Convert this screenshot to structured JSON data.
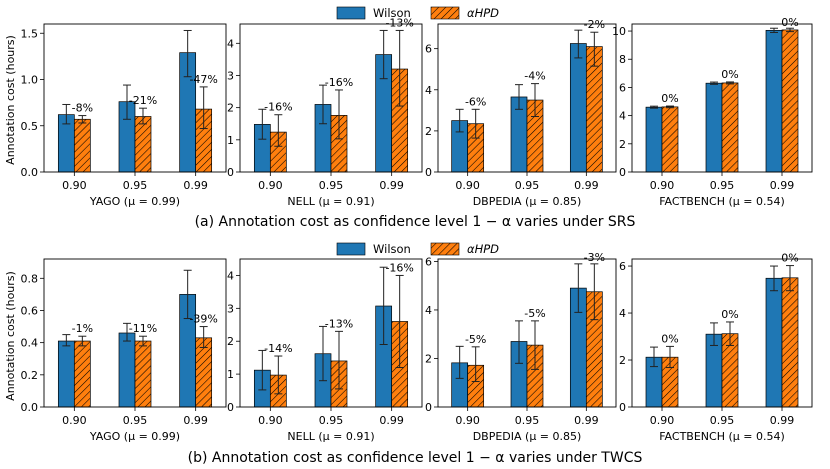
{
  "legend": {
    "labels": [
      "Wilson",
      "αHPD"
    ],
    "colors": [
      "#1f77b4",
      "#ff7f0e"
    ],
    "placement": "top-center"
  },
  "ylabel": "Annotation cost (hours)",
  "rows": [
    {
      "caption": "(a) Annotation cost as confidence level 1 − α varies under SRS"
    },
    {
      "caption": "(b) Annotation cost as confidence level 1 − α varies under TWCS"
    }
  ],
  "chart_data": [
    {
      "type": "bar",
      "row": 0,
      "col": 0,
      "xlabel": "YAGO (μ = 0.99)",
      "categories": [
        "0.90",
        "0.95",
        "0.99"
      ],
      "ylim": [
        0,
        1.6
      ],
      "yticks": [
        0,
        0.5,
        1.0,
        1.5
      ],
      "yticklabels": [
        "0.0",
        "0.5",
        "1.0",
        "1.5"
      ],
      "series": [
        {
          "name": "Wilson",
          "values": [
            0.62,
            0.76,
            1.29
          ],
          "err_low": [
            0.52,
            0.57,
            1.03
          ],
          "err_high": [
            0.73,
            0.94,
            1.53
          ]
        },
        {
          "name": "αHPD",
          "values": [
            0.57,
            0.6,
            0.68
          ],
          "err_low": [
            0.53,
            0.52,
            0.47
          ],
          "err_high": [
            0.61,
            0.69,
            0.92
          ]
        }
      ],
      "annotations": [
        "-8%",
        "-21%",
        "-47%"
      ]
    },
    {
      "type": "bar",
      "row": 0,
      "col": 1,
      "xlabel": "NELL (μ = 0.91)",
      "categories": [
        "0.90",
        "0.95",
        "0.99"
      ],
      "ylim": [
        0,
        4.6
      ],
      "yticks": [
        0,
        1,
        2,
        3,
        4
      ],
      "yticklabels": [
        "0",
        "1",
        "2",
        "3",
        "4"
      ],
      "series": [
        {
          "name": "Wilson",
          "values": [
            1.48,
            2.1,
            3.65
          ],
          "err_low": [
            1.02,
            1.5,
            2.9
          ],
          "err_high": [
            1.95,
            2.7,
            4.4
          ]
        },
        {
          "name": "αHPD",
          "values": [
            1.24,
            1.76,
            3.2
          ],
          "err_low": [
            0.8,
            1.03,
            2.05
          ],
          "err_high": [
            1.78,
            2.55,
            4.4
          ]
        }
      ],
      "annotations": [
        "-16%",
        "-16%",
        "-13%"
      ]
    },
    {
      "type": "bar",
      "row": 0,
      "col": 2,
      "xlabel": "DBPEDIA (μ = 0.85)",
      "categories": [
        "0.90",
        "0.95",
        "0.99"
      ],
      "ylim": [
        0,
        7.2
      ],
      "yticks": [
        0,
        2,
        4,
        6
      ],
      "yticklabels": [
        "0",
        "2",
        "4",
        "6"
      ],
      "series": [
        {
          "name": "Wilson",
          "values": [
            2.5,
            3.65,
            6.25
          ],
          "err_low": [
            1.95,
            3.05,
            5.55
          ],
          "err_high": [
            3.05,
            4.25,
            6.9
          ]
        },
        {
          "name": "αHPD",
          "values": [
            2.35,
            3.5,
            6.1
          ],
          "err_low": [
            1.65,
            2.7,
            5.15
          ],
          "err_high": [
            3.05,
            4.3,
            6.8
          ]
        }
      ],
      "annotations": [
        "-6%",
        "-4%",
        "-2%"
      ]
    },
    {
      "type": "bar",
      "row": 0,
      "col": 3,
      "xlabel": "FACTBENCH (μ = 0.54)",
      "categories": [
        "0.90",
        "0.95",
        "0.99"
      ],
      "ylim": [
        0,
        10.5
      ],
      "yticks": [
        0,
        2,
        4,
        6,
        8,
        10
      ],
      "yticklabels": [
        "0",
        "2",
        "4",
        "6",
        "8",
        "10"
      ],
      "series": [
        {
          "name": "Wilson",
          "values": [
            4.6,
            6.3,
            10.05
          ],
          "err_low": [
            4.53,
            6.22,
            9.9
          ],
          "err_high": [
            4.67,
            6.38,
            10.2
          ]
        },
        {
          "name": "αHPD",
          "values": [
            4.62,
            6.32,
            10.08
          ],
          "err_low": [
            4.56,
            6.25,
            9.96
          ],
          "err_high": [
            4.68,
            6.39,
            10.2
          ]
        }
      ],
      "annotations": [
        "0%",
        "0%",
        "0%"
      ]
    },
    {
      "type": "bar",
      "row": 1,
      "col": 0,
      "xlabel": "YAGO (μ = 0.99)",
      "categories": [
        "0.90",
        "0.95",
        "0.99"
      ],
      "ylim": [
        0,
        0.92
      ],
      "yticks": [
        0,
        0.2,
        0.4,
        0.6,
        0.8
      ],
      "yticklabels": [
        "0.0",
        "0.2",
        "0.4",
        "0.6",
        "0.8"
      ],
      "series": [
        {
          "name": "Wilson",
          "values": [
            0.41,
            0.46,
            0.7
          ],
          "err_low": [
            0.38,
            0.41,
            0.55
          ],
          "err_high": [
            0.45,
            0.52,
            0.85
          ]
        },
        {
          "name": "αHPD",
          "values": [
            0.41,
            0.41,
            0.43
          ],
          "err_low": [
            0.38,
            0.38,
            0.37
          ],
          "err_high": [
            0.44,
            0.44,
            0.5
          ]
        }
      ],
      "annotations": [
        "-1%",
        "-11%",
        "-39%"
      ]
    },
    {
      "type": "bar",
      "row": 1,
      "col": 1,
      "xlabel": "NELL (μ = 0.91)",
      "categories": [
        "0.90",
        "0.95",
        "0.99"
      ],
      "ylim": [
        0,
        4.5
      ],
      "yticks": [
        0,
        1,
        2,
        3,
        4
      ],
      "yticklabels": [
        "0",
        "1",
        "2",
        "3",
        "4"
      ],
      "series": [
        {
          "name": "Wilson",
          "values": [
            1.12,
            1.62,
            3.07
          ],
          "err_low": [
            0.52,
            0.8,
            1.9
          ],
          "err_high": [
            1.72,
            2.45,
            4.25
          ]
        },
        {
          "name": "αHPD",
          "values": [
            0.97,
            1.4,
            2.6
          ],
          "err_low": [
            0.4,
            0.55,
            1.2
          ],
          "err_high": [
            1.55,
            2.3,
            4.0
          ]
        }
      ],
      "annotations": [
        "-14%",
        "-13%",
        "-16%"
      ]
    },
    {
      "type": "bar",
      "row": 1,
      "col": 2,
      "xlabel": "DBPEDIA (μ = 0.85)",
      "categories": [
        "0.90",
        "0.95",
        "0.99"
      ],
      "ylim": [
        0,
        6.1
      ],
      "yticks": [
        0,
        2,
        4,
        6
      ],
      "yticklabels": [
        "0",
        "2",
        "4",
        "6"
      ],
      "series": [
        {
          "name": "Wilson",
          "values": [
            1.82,
            2.7,
            4.9
          ],
          "err_low": [
            1.18,
            1.8,
            3.9
          ],
          "err_high": [
            2.5,
            3.55,
            5.9
          ]
        },
        {
          "name": "αHPD",
          "values": [
            1.72,
            2.55,
            4.75
          ],
          "err_low": [
            1.05,
            1.55,
            3.6
          ],
          "err_high": [
            2.48,
            3.55,
            5.9
          ]
        }
      ],
      "annotations": [
        "-5%",
        "-5%",
        "-3%"
      ]
    },
    {
      "type": "bar",
      "row": 1,
      "col": 3,
      "xlabel": "FACTBENCH (μ = 0.54)",
      "categories": [
        "0.90",
        "0.95",
        "0.99"
      ],
      "ylim": [
        0,
        6.3
      ],
      "yticks": [
        0,
        2,
        4,
        6
      ],
      "yticklabels": [
        "0",
        "2",
        "4",
        "6"
      ],
      "series": [
        {
          "name": "Wilson",
          "values": [
            2.12,
            3.1,
            5.48
          ],
          "err_low": [
            1.72,
            2.62,
            4.95
          ],
          "err_high": [
            2.55,
            3.58,
            6.0
          ]
        },
        {
          "name": "αHPD",
          "values": [
            2.12,
            3.12,
            5.5
          ],
          "err_low": [
            1.68,
            2.62,
            4.95
          ],
          "err_high": [
            2.58,
            3.62,
            6.02
          ]
        }
      ],
      "annotations": [
        "0%",
        "0%",
        "0%"
      ]
    }
  ]
}
